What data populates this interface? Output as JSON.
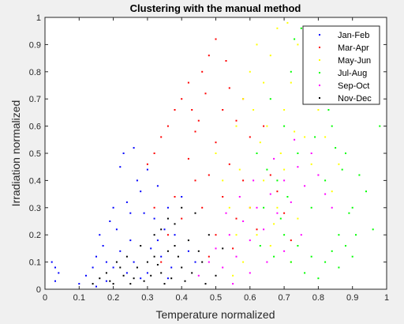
{
  "chart_data": {
    "type": "scatter",
    "title": "Clustering with the manual method",
    "xlabel": "Temperature normalized",
    "ylabel": "Irradiation normalized",
    "xlim": [
      0,
      1
    ],
    "ylim": [
      0,
      1
    ],
    "xticks": [
      "0",
      "0.1",
      "0.2",
      "0.3",
      "0.4",
      "0.5",
      "0.6",
      "0.7",
      "0.8",
      "0.9",
      "1"
    ],
    "yticks": [
      "0",
      "0.1",
      "0.2",
      "0.3",
      "0.4",
      "0.5",
      "0.6",
      "0.7",
      "0.8",
      "0.9",
      "1"
    ],
    "grid": false,
    "legend_position": "top-right",
    "series": [
      {
        "name": "Jan-Feb",
        "color": "#0000ff",
        "points": [
          [
            0.02,
            0.1
          ],
          [
            0.03,
            0.08
          ],
          [
            0.04,
            0.06
          ],
          [
            0.03,
            0.03
          ],
          [
            0.1,
            0.02
          ],
          [
            0.12,
            0.05
          ],
          [
            0.14,
            0.08
          ],
          [
            0.15,
            0.12
          ],
          [
            0.16,
            0.2
          ],
          [
            0.17,
            0.16
          ],
          [
            0.18,
            0.1
          ],
          [
            0.19,
            0.25
          ],
          [
            0.2,
            0.3
          ],
          [
            0.21,
            0.22
          ],
          [
            0.22,
            0.45
          ],
          [
            0.23,
            0.5
          ],
          [
            0.24,
            0.32
          ],
          [
            0.25,
            0.18
          ],
          [
            0.26,
            0.52
          ],
          [
            0.27,
            0.4
          ],
          [
            0.28,
            0.36
          ],
          [
            0.29,
            0.28
          ],
          [
            0.3,
            0.44
          ],
          [
            0.31,
            0.15
          ],
          [
            0.32,
            0.26
          ],
          [
            0.33,
            0.38
          ],
          [
            0.34,
            0.12
          ],
          [
            0.35,
            0.22
          ],
          [
            0.36,
            0.3
          ],
          [
            0.37,
            0.08
          ],
          [
            0.38,
            0.2
          ],
          [
            0.4,
            0.34
          ],
          [
            0.42,
            0.14
          ],
          [
            0.44,
            0.1
          ],
          [
            0.2,
            0.08
          ],
          [
            0.22,
            0.14
          ],
          [
            0.24,
            0.06
          ],
          [
            0.26,
            0.1
          ],
          [
            0.28,
            0.04
          ],
          [
            0.18,
            0.03
          ],
          [
            0.15,
            0.01
          ],
          [
            0.25,
            0.28
          ],
          [
            0.3,
            0.06
          ],
          [
            0.33,
            0.18
          ],
          [
            0.36,
            0.04
          ]
        ]
      },
      {
        "name": "Mar-Apr",
        "color": "#ff0000",
        "points": [
          [
            0.3,
            0.46
          ],
          [
            0.32,
            0.5
          ],
          [
            0.34,
            0.56
          ],
          [
            0.36,
            0.6
          ],
          [
            0.38,
            0.66
          ],
          [
            0.4,
            0.7
          ],
          [
            0.42,
            0.76
          ],
          [
            0.44,
            0.58
          ],
          [
            0.46,
            0.8
          ],
          [
            0.48,
            0.86
          ],
          [
            0.5,
            0.92
          ],
          [
            0.52,
            0.66
          ],
          [
            0.54,
            0.74
          ],
          [
            0.56,
            0.62
          ],
          [
            0.58,
            0.7
          ],
          [
            0.6,
            0.56
          ],
          [
            0.62,
            0.5
          ],
          [
            0.64,
            0.6
          ],
          [
            0.66,
            0.42
          ],
          [
            0.68,
            0.36
          ],
          [
            0.42,
            0.48
          ],
          [
            0.44,
            0.4
          ],
          [
            0.46,
            0.3
          ],
          [
            0.48,
            0.42
          ],
          [
            0.5,
            0.2
          ],
          [
            0.52,
            0.34
          ],
          [
            0.54,
            0.46
          ],
          [
            0.56,
            0.26
          ],
          [
            0.58,
            0.4
          ],
          [
            0.6,
            0.3
          ],
          [
            0.4,
            0.26
          ],
          [
            0.38,
            0.34
          ],
          [
            0.36,
            0.2
          ],
          [
            0.34,
            0.1
          ],
          [
            0.48,
            0.12
          ],
          [
            0.55,
            0.15
          ],
          [
            0.62,
            0.22
          ],
          [
            0.7,
            0.28
          ],
          [
            0.72,
            0.18
          ],
          [
            0.32,
            0.3
          ],
          [
            0.45,
            0.62
          ],
          [
            0.5,
            0.54
          ],
          [
            0.53,
            0.84
          ],
          [
            0.47,
            0.72
          ],
          [
            0.43,
            0.66
          ]
        ]
      },
      {
        "name": "May-Jun",
        "color": "#ffff00",
        "points": [
          [
            0.5,
            0.5
          ],
          [
            0.52,
            0.4
          ],
          [
            0.54,
            0.3
          ],
          [
            0.56,
            0.6
          ],
          [
            0.58,
            0.7
          ],
          [
            0.6,
            0.8
          ],
          [
            0.62,
            0.9
          ],
          [
            0.64,
            0.76
          ],
          [
            0.66,
            0.86
          ],
          [
            0.68,
            0.96
          ],
          [
            0.7,
            0.66
          ],
          [
            0.72,
            0.76
          ],
          [
            0.74,
            0.9
          ],
          [
            0.76,
            0.56
          ],
          [
            0.78,
            0.46
          ],
          [
            0.8,
            0.66
          ],
          [
            0.82,
            0.56
          ],
          [
            0.84,
            0.36
          ],
          [
            0.86,
            0.46
          ],
          [
            0.6,
            0.3
          ],
          [
            0.62,
            0.2
          ],
          [
            0.64,
            0.4
          ],
          [
            0.66,
            0.16
          ],
          [
            0.68,
            0.3
          ],
          [
            0.7,
            0.44
          ],
          [
            0.72,
            0.1
          ],
          [
            0.74,
            0.26
          ],
          [
            0.58,
            0.1
          ],
          [
            0.56,
            0.2
          ],
          [
            0.55,
            0.05
          ],
          [
            0.65,
            0.6
          ],
          [
            0.63,
            0.54
          ],
          [
            0.69,
            0.5
          ],
          [
            0.73,
            0.58
          ],
          [
            0.77,
            0.7
          ],
          [
            0.79,
            0.86
          ],
          [
            0.71,
            0.98
          ],
          [
            0.61,
            0.66
          ],
          [
            0.57,
            0.44
          ],
          [
            0.67,
            0.24
          ]
        ]
      },
      {
        "name": "Jul-Aug",
        "color": "#00ff00",
        "points": [
          [
            0.62,
            0.5
          ],
          [
            0.64,
            0.3
          ],
          [
            0.66,
            0.7
          ],
          [
            0.68,
            0.4
          ],
          [
            0.7,
            0.6
          ],
          [
            0.72,
            0.8
          ],
          [
            0.74,
            0.5
          ],
          [
            0.76,
            0.9
          ],
          [
            0.78,
            0.3
          ],
          [
            0.8,
            0.7
          ],
          [
            0.82,
            0.4
          ],
          [
            0.84,
            0.6
          ],
          [
            0.86,
            0.2
          ],
          [
            0.88,
            0.5
          ],
          [
            0.9,
            0.3
          ],
          [
            0.92,
            0.42
          ],
          [
            0.94,
            0.36
          ],
          [
            0.96,
            0.22
          ],
          [
            0.98,
            0.6
          ],
          [
            0.7,
            0.2
          ],
          [
            0.72,
            0.1
          ],
          [
            0.74,
            0.16
          ],
          [
            0.76,
            0.06
          ],
          [
            0.78,
            0.12
          ],
          [
            0.8,
            0.04
          ],
          [
            0.82,
            0.1
          ],
          [
            0.84,
            0.14
          ],
          [
            0.86,
            0.08
          ],
          [
            0.88,
            0.16
          ],
          [
            0.9,
            0.12
          ],
          [
            0.75,
            0.96
          ],
          [
            0.73,
            0.92
          ],
          [
            0.77,
            0.74
          ],
          [
            0.79,
            0.56
          ],
          [
            0.81,
            0.82
          ],
          [
            0.83,
            0.66
          ],
          [
            0.85,
            0.52
          ],
          [
            0.87,
            0.44
          ],
          [
            0.89,
            0.28
          ],
          [
            0.91,
            0.2
          ],
          [
            0.71,
            0.34
          ],
          [
            0.69,
            0.26
          ],
          [
            0.67,
            0.12
          ],
          [
            0.65,
            0.44
          ],
          [
            0.63,
            0.16
          ]
        ]
      },
      {
        "name": "Sep-Oct",
        "color": "#ff00ff",
        "points": [
          [
            0.45,
            0.05
          ],
          [
            0.48,
            0.1
          ],
          [
            0.5,
            0.15
          ],
          [
            0.52,
            0.08
          ],
          [
            0.54,
            0.2
          ],
          [
            0.56,
            0.12
          ],
          [
            0.58,
            0.25
          ],
          [
            0.6,
            0.18
          ],
          [
            0.62,
            0.3
          ],
          [
            0.64,
            0.22
          ],
          [
            0.66,
            0.35
          ],
          [
            0.68,
            0.28
          ],
          [
            0.7,
            0.4
          ],
          [
            0.72,
            0.32
          ],
          [
            0.74,
            0.45
          ],
          [
            0.76,
            0.38
          ],
          [
            0.78,
            0.5
          ],
          [
            0.8,
            0.42
          ],
          [
            0.82,
            0.35
          ],
          [
            0.84,
            0.3
          ],
          [
            0.55,
            0.02
          ],
          [
            0.6,
            0.06
          ],
          [
            0.65,
            0.1
          ],
          [
            0.7,
            0.14
          ],
          [
            0.75,
            0.2
          ],
          [
            0.57,
            0.34
          ],
          [
            0.61,
            0.4
          ],
          [
            0.67,
            0.48
          ],
          [
            0.73,
            0.55
          ],
          [
            0.53,
            0.28
          ]
        ]
      },
      {
        "name": "Nov-Dec",
        "color": "#000000",
        "points": [
          [
            0.14,
            0.02
          ],
          [
            0.16,
            0.04
          ],
          [
            0.18,
            0.06
          ],
          [
            0.2,
            0.02
          ],
          [
            0.22,
            0.08
          ],
          [
            0.24,
            0.12
          ],
          [
            0.26,
            0.04
          ],
          [
            0.28,
            0.16
          ],
          [
            0.3,
            0.1
          ],
          [
            0.32,
            0.2
          ],
          [
            0.34,
            0.06
          ],
          [
            0.36,
            0.14
          ],
          [
            0.38,
            0.24
          ],
          [
            0.4,
            0.08
          ],
          [
            0.42,
            0.18
          ],
          [
            0.44,
            0.28
          ],
          [
            0.46,
            0.1
          ],
          [
            0.48,
            0.2
          ],
          [
            0.5,
            0.05
          ],
          [
            0.52,
            0.15
          ],
          [
            0.29,
            0.03
          ],
          [
            0.31,
            0.05
          ],
          [
            0.33,
            0.09
          ],
          [
            0.35,
            0.02
          ],
          [
            0.37,
            0.04
          ],
          [
            0.39,
            0.12
          ],
          [
            0.41,
            0.03
          ],
          [
            0.43,
            0.06
          ],
          [
            0.45,
            0.14
          ],
          [
            0.47,
            0.02
          ],
          [
            0.36,
            0.26
          ],
          [
            0.34,
            0.22
          ],
          [
            0.4,
            0.3
          ],
          [
            0.38,
            0.16
          ],
          [
            0.32,
            0.12
          ],
          [
            0.27,
            0.08
          ],
          [
            0.25,
            0.02
          ],
          [
            0.23,
            0.05
          ],
          [
            0.21,
            0.1
          ],
          [
            0.19,
            0.03
          ]
        ]
      }
    ]
  }
}
